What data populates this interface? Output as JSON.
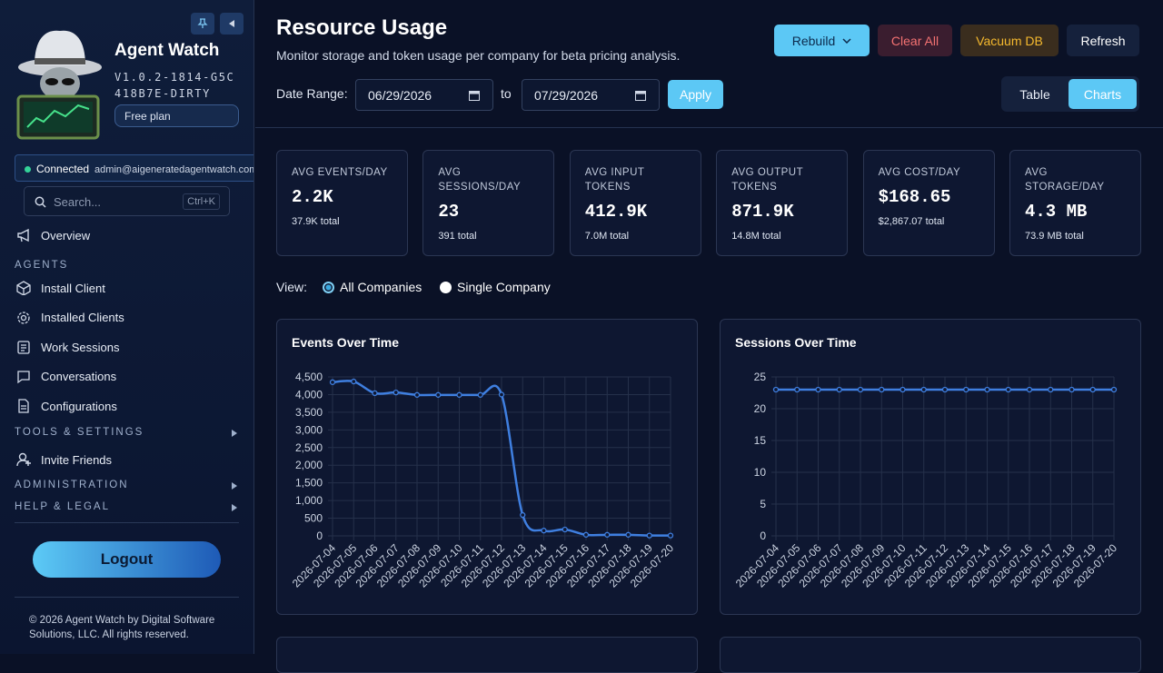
{
  "sidebar": {
    "app_name": "Agent Watch",
    "version": "V1.0.2-1814-G5C418B7E-DIRTY",
    "plan": "Free plan",
    "status": "Connected",
    "user": "admin@aigeneratedagentwatch.com",
    "search_placeholder": "Search...",
    "search_shortcut": "Ctrl+K",
    "overview": "Overview",
    "agents_heading": "AGENTS",
    "agents_items": [
      "Install Client",
      "Installed Clients",
      "Work Sessions",
      "Conversations",
      "Configurations"
    ],
    "tools_heading": "TOOLS & SETTINGS",
    "invite": "Invite Friends",
    "admin_heading": "ADMINISTRATION",
    "help_heading": "HELP & LEGAL",
    "logout": "Logout",
    "footer": "© 2026 Agent Watch by Digital Software Solutions, LLC. All rights reserved."
  },
  "header": {
    "title": "Resource Usage",
    "subtitle": "Monitor storage and token usage per company for beta pricing analysis.",
    "buttons": [
      "Rebuild",
      "Clear All",
      "Vacuum DB",
      "Refresh"
    ],
    "date_range_label": "Date Range:",
    "start_date": "06/29/2026",
    "to": "to",
    "end_date": "07/29/2026",
    "apply": "Apply",
    "view_modes": [
      "Table",
      "Charts"
    ]
  },
  "stats": [
    {
      "label": "AVG EVENTS/DAY",
      "value": "2.2K",
      "total": "37.9K total"
    },
    {
      "label": "AVG SESSIONS/DAY",
      "value": "23",
      "total": "391 total"
    },
    {
      "label": "AVG INPUT TOKENS",
      "value": "412.9K",
      "total": "7.0M total"
    },
    {
      "label": "AVG OUTPUT TOKENS",
      "value": "871.9K",
      "total": "14.8M total"
    },
    {
      "label": "AVG COST/DAY",
      "value": "$168.65",
      "total": "$2,867.07 total"
    },
    {
      "label": "AVG STORAGE/DAY",
      "value": "4.3 MB",
      "total": "73.9 MB total"
    }
  ],
  "view": {
    "label": "View:",
    "options": [
      "All Companies",
      "Single Company"
    ]
  },
  "chart_data": [
    {
      "type": "line",
      "title": "Events Over Time",
      "categories": [
        "2026-07-04",
        "2026-07-05",
        "2026-07-06",
        "2026-07-07",
        "2026-07-08",
        "2026-07-09",
        "2026-07-10",
        "2026-07-11",
        "2026-07-12",
        "2026-07-13",
        "2026-07-14",
        "2026-07-15",
        "2026-07-16",
        "2026-07-17",
        "2026-07-18",
        "2026-07-19",
        "2026-07-20"
      ],
      "values": [
        4350,
        4370,
        4040,
        4060,
        3990,
        3990,
        3990,
        3990,
        4000,
        590,
        150,
        180,
        30,
        30,
        30,
        10,
        10
      ],
      "color": "#3f7fe0",
      "ylim": [
        0,
        4500
      ],
      "yticks": [
        0,
        500,
        {
          "value": 1000,
          "label": "1,000"
        },
        {
          "value": 1500,
          "label": "1,500"
        },
        {
          "value": 2000,
          "label": "2,000"
        },
        {
          "value": 2500,
          "label": "2,500"
        },
        {
          "value": 3000,
          "label": "3,000"
        },
        {
          "value": 3500,
          "label": "3,500"
        },
        {
          "value": 4000,
          "label": "4,000"
        },
        {
          "value": 4500,
          "label": "4,500"
        }
      ],
      "grid": true
    },
    {
      "type": "line",
      "title": "Sessions Over Time",
      "categories": [
        "2026-07-04",
        "2026-07-05",
        "2026-07-06",
        "2026-07-07",
        "2026-07-08",
        "2026-07-09",
        "2026-07-10",
        "2026-07-11",
        "2026-07-12",
        "2026-07-13",
        "2026-07-14",
        "2026-07-15",
        "2026-07-16",
        "2026-07-17",
        "2026-07-18",
        "2026-07-19",
        "2026-07-20"
      ],
      "values": [
        23,
        23,
        23,
        23,
        23,
        23,
        23,
        23,
        23,
        23,
        23,
        23,
        23,
        23,
        23,
        23,
        23
      ],
      "color": "#3f7fe0",
      "ylim": [
        0,
        25
      ],
      "yticks": [
        0,
        5,
        10,
        15,
        20,
        25
      ],
      "grid": true
    }
  ]
}
